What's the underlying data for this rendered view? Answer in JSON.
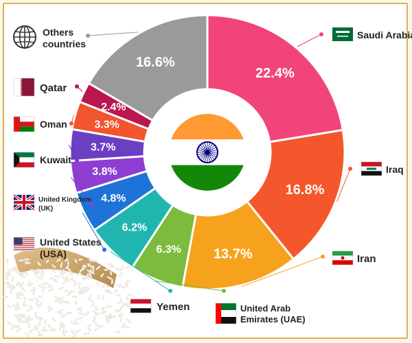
{
  "chart_data": {
    "type": "pie",
    "title": "",
    "center_flag": "india-flag",
    "slices": [
      {
        "label": "Saudi Arabia",
        "value": 22.4,
        "value_label": "22.4%",
        "color": "#f1457a",
        "flag": "saudi-arabia-flag"
      },
      {
        "label": "Iraq",
        "value": 16.8,
        "value_label": "16.8%",
        "color": "#f4572c",
        "flag": "iraq-flag"
      },
      {
        "label": "Iran",
        "value": 13.7,
        "value_label": "13.7%",
        "color": "#f7a21c",
        "flag": "iran-flag"
      },
      {
        "label": "United Arab Emirates (UAE)",
        "label_lines": [
          "United Arab",
          "Emirates (UAE)"
        ],
        "value": 6.3,
        "value_label": "6.3%",
        "color": "#7dbb3e",
        "flag": "uae-flag"
      },
      {
        "label": "Yemen",
        "value": 6.2,
        "value_label": "6.2%",
        "color": "#21b5b0",
        "flag": "yemen-flag"
      },
      {
        "label": "United States (USA)",
        "label_lines": [
          "United States",
          "(USA)"
        ],
        "value": 4.8,
        "value_label": "4.8%",
        "color": "#1f73d8",
        "flag": "usa-flag"
      },
      {
        "label": "United Kingdom (UK)",
        "label_lines": [
          "United Kingdom",
          "(UK)"
        ],
        "value": 3.8,
        "value_label": "3.8%",
        "color": "#8e3fd1",
        "flag": "uk-flag"
      },
      {
        "label": "Kuwait",
        "value": 3.7,
        "value_label": "3.7%",
        "color": "#6a3fc2",
        "flag": "kuwait-flag"
      },
      {
        "label": "Oman",
        "value": 3.3,
        "value_label": "3.3%",
        "color": "#f2542d",
        "flag": "oman-flag"
      },
      {
        "label": "Qatar",
        "value": 2.4,
        "value_label": "2.4%",
        "color": "#b8184f",
        "flag": "qatar-flag"
      },
      {
        "label": "Others countries",
        "label_lines": [
          "Others",
          "countries"
        ],
        "value": 16.6,
        "value_label": "16.6%",
        "color": "#9a9a9a",
        "flag": "globe-icon"
      }
    ]
  }
}
